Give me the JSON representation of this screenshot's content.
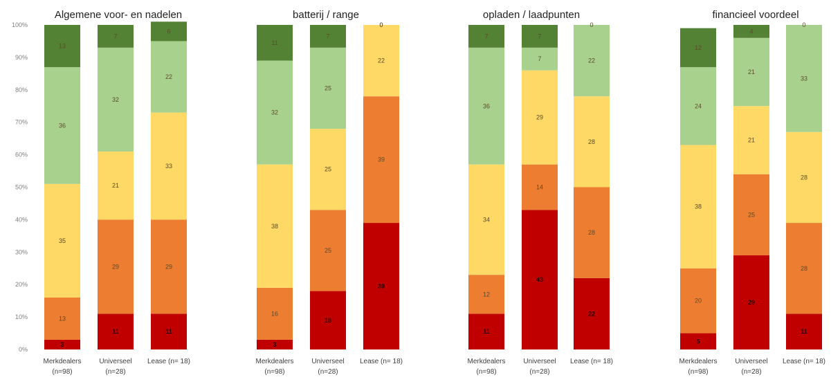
{
  "chart_data": {
    "type": "bar",
    "stacked": true,
    "percent_stacked": true,
    "y_axis": {
      "ylim": [
        0,
        100
      ],
      "ticks": [
        "0%",
        "10%",
        "20%",
        "30%",
        "40%",
        "50%",
        "60%",
        "70%",
        "80%",
        "90%",
        "100%"
      ]
    },
    "colors": [
      "#c00000",
      "#ed7d31",
      "#ffd966",
      "#a9d18e",
      "#548235"
    ],
    "panels": [
      {
        "title": "Algemene voor- en nadelen",
        "categories": [
          {
            "lines": [
              "Merkdealers",
              "(n=98)"
            ]
          },
          {
            "lines": [
              "Universeel",
              "(n=28)"
            ]
          },
          {
            "lines": [
              "Lease (n= 18)"
            ]
          }
        ],
        "series": [
          {
            "values": [
              3,
              11,
              11
            ]
          },
          {
            "values": [
              13,
              29,
              29
            ]
          },
          {
            "values": [
              35,
              21,
              33
            ]
          },
          {
            "values": [
              36,
              32,
              22
            ]
          },
          {
            "values": [
              13,
              7,
              6
            ]
          }
        ]
      },
      {
        "title": "batterij / range",
        "categories": [
          {
            "lines": [
              "Merkdealers",
              "(n=98)"
            ]
          },
          {
            "lines": [
              "Universeel",
              "(n=28)"
            ]
          },
          {
            "lines": [
              "Lease (n= 18)"
            ]
          }
        ],
        "series": [
          {
            "values": [
              3,
              18,
              39
            ]
          },
          {
            "values": [
              16,
              25,
              39
            ]
          },
          {
            "values": [
              38,
              25,
              22
            ]
          },
          {
            "values": [
              32,
              25,
              0
            ]
          },
          {
            "values": [
              11,
              7,
              0
            ]
          }
        ]
      },
      {
        "title": "opladen / laadpunten",
        "categories": [
          {
            "lines": [
              "Merkdealers",
              "(n=98)"
            ]
          },
          {
            "lines": [
              "Universeel",
              "(n=28)"
            ]
          },
          {
            "lines": [
              "Lease (n= 18)"
            ]
          }
        ],
        "series": [
          {
            "values": [
              11,
              43,
              22
            ]
          },
          {
            "values": [
              12,
              14,
              28
            ]
          },
          {
            "values": [
              34,
              29,
              28
            ]
          },
          {
            "values": [
              36,
              7,
              22
            ]
          },
          {
            "values": [
              7,
              7,
              0
            ]
          }
        ]
      },
      {
        "title": "financieel voordeel",
        "categories": [
          {
            "lines": [
              "Merkdealers",
              "(n=98)"
            ]
          },
          {
            "lines": [
              "Universeel",
              "(n=28)"
            ]
          },
          {
            "lines": [
              "Lease (n= 18)"
            ]
          }
        ],
        "series": [
          {
            "values": [
              5,
              29,
              11
            ]
          },
          {
            "values": [
              20,
              25,
              28
            ]
          },
          {
            "values": [
              38,
              21,
              28
            ]
          },
          {
            "values": [
              24,
              21,
              33
            ]
          },
          {
            "values": [
              12,
              4,
              0
            ]
          }
        ]
      }
    ]
  }
}
